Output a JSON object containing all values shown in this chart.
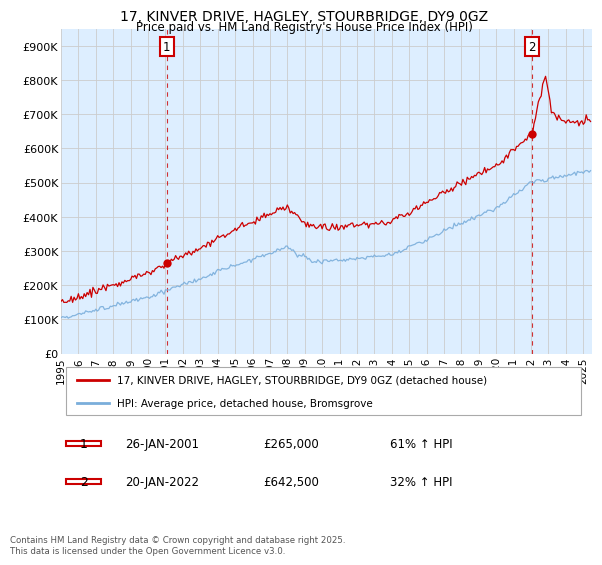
{
  "title": "17, KINVER DRIVE, HAGLEY, STOURBRIDGE, DY9 0GZ",
  "subtitle": "Price paid vs. HM Land Registry's House Price Index (HPI)",
  "ylim": [
    0,
    950000
  ],
  "yticks": [
    0,
    100000,
    200000,
    300000,
    400000,
    500000,
    600000,
    700000,
    800000,
    900000
  ],
  "ytick_labels": [
    "£0",
    "£100K",
    "£200K",
    "£300K",
    "£400K",
    "£500K",
    "£600K",
    "£700K",
    "£800K",
    "£900K"
  ],
  "xlim_start": 1995.0,
  "xlim_end": 2025.5,
  "xticks": [
    1995,
    1996,
    1997,
    1998,
    1999,
    2000,
    2001,
    2002,
    2003,
    2004,
    2005,
    2006,
    2007,
    2008,
    2009,
    2010,
    2011,
    2012,
    2013,
    2014,
    2015,
    2016,
    2017,
    2018,
    2019,
    2020,
    2021,
    2022,
    2023,
    2024,
    2025
  ],
  "red_color": "#cc0000",
  "blue_color": "#7aaedb",
  "bg_fill": "#ddeeff",
  "bg_color": "#ffffff",
  "grid_color": "#cccccc",
  "legend_label_red": "17, KINVER DRIVE, HAGLEY, STOURBRIDGE, DY9 0GZ (detached house)",
  "legend_label_blue": "HPI: Average price, detached house, Bromsgrove",
  "annotation1_date": "26-JAN-2001",
  "annotation1_price": "£265,000",
  "annotation1_hpi": "61% ↑ HPI",
  "annotation2_date": "20-JAN-2022",
  "annotation2_price": "£642,500",
  "annotation2_hpi": "32% ↑ HPI",
  "footer": "Contains HM Land Registry data © Crown copyright and database right 2025.\nThis data is licensed under the Open Government Licence v3.0.",
  "purchase1_x": 2001.08,
  "purchase1_y": 265000,
  "purchase2_x": 2022.05,
  "purchase2_y": 642500
}
